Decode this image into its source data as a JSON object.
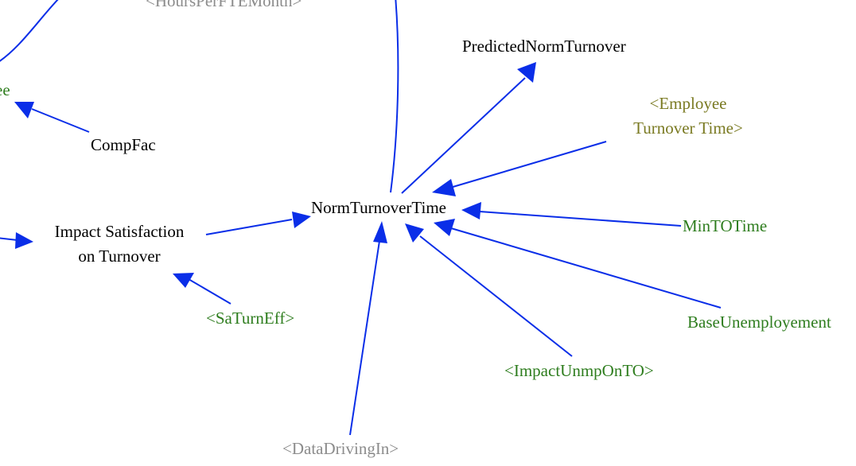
{
  "colors": {
    "arrow": "#0a2ee8",
    "node": "#000000",
    "shadow_green": "#2e7d1e",
    "shadow_olive": "#7a7a22",
    "shadow_gray": "#8c8c8c",
    "background": "#ffffff"
  },
  "nodes": {
    "hours_per_fte_month": "<HoursPerFTEMonth>",
    "employee_cut": "ee",
    "comp_fac": "CompFac",
    "impact_satisfaction_line1": "Impact Satisfaction",
    "impact_satisfaction_line2": "on Turnover",
    "sa_turn_eff": "<SaTurnEff>",
    "norm_turnover_time": "NormTurnoverTime",
    "predicted_norm_turnover": "PredictedNormTurnover",
    "employee_turnover_time_line1": "<Employee",
    "employee_turnover_time_line2": "Turnover Time>",
    "min_to_time": "MinTOTime",
    "base_unemployement": "BaseUnemployement",
    "impact_unmp_on_to": "<ImpactUnmpOnTO>",
    "data_driving_in": "<DataDrivingIn>"
  },
  "links": [
    {
      "from": "hours_per_fte_month",
      "to": "norm_turnover_time"
    },
    {
      "from": "norm_turnover_time",
      "to": "predicted_norm_turnover"
    },
    {
      "from": "employee_turnover_time",
      "to": "norm_turnover_time"
    },
    {
      "from": "min_to_time",
      "to": "norm_turnover_time"
    },
    {
      "from": "base_unemployement",
      "to": "norm_turnover_time"
    },
    {
      "from": "impact_unmp_on_to",
      "to": "norm_turnover_time"
    },
    {
      "from": "data_driving_in",
      "to": "norm_turnover_time"
    },
    {
      "from": "impact_satisfaction_on_turnover",
      "to": "norm_turnover_time"
    },
    {
      "from": "sa_turn_eff",
      "to": "impact_satisfaction_on_turnover"
    },
    {
      "from": "comp_fac",
      "to": "employee"
    },
    {
      "from": "offscreen_left",
      "to": "impact_satisfaction_on_turnover"
    },
    {
      "from": "offscreen_top",
      "to": "employee"
    }
  ]
}
